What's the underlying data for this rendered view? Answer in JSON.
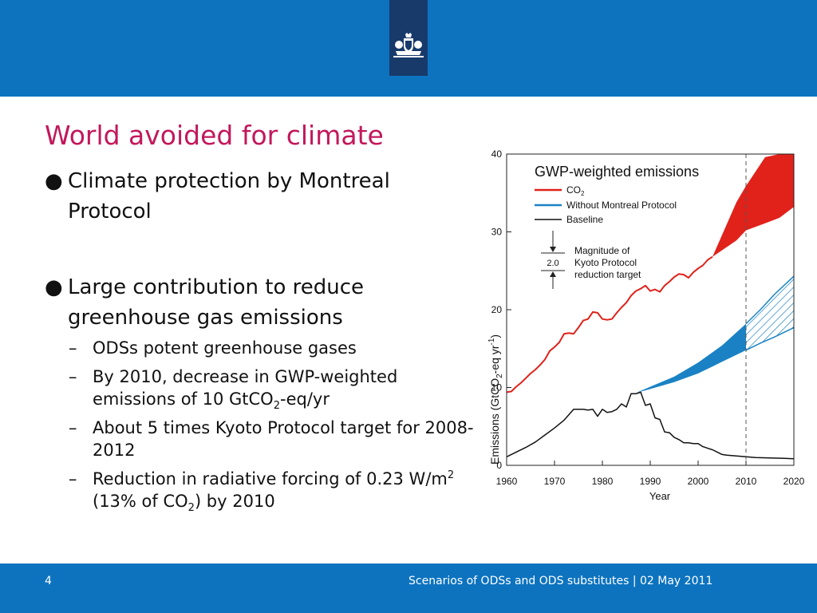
{
  "header": {
    "logo_icon": "royal-coat-of-arms-icon",
    "brand_color": "#0d73bf",
    "logo_bg": "#173a6a"
  },
  "slide": {
    "title": "World avoided for climate",
    "bullet_char": "●",
    "dash_char": "–",
    "bullets": [
      {
        "text": "Climate protection by Montreal Protocol"
      },
      {
        "text": "Large contribution to reduce greenhouse gas emissions"
      }
    ],
    "subbullets": {
      "s1": "ODSs potent greenhouse gases",
      "s2_a": "By 2010, decrease in GWP-weighted emissions of 10 GtCO",
      "s2_sub": "2",
      "s2_b": "-eq/yr",
      "s3": "About 5 times Kyoto Protocol target for 2008-2012",
      "s4_a": "Reduction in radiative forcing of 0.23 W/m",
      "s4_sup": "2",
      "s4_b": " (13% of CO",
      "s4_sub": "2",
      "s4_c": ") by 2010"
    }
  },
  "footer": {
    "page": "4",
    "text": "Scenarios of ODSs and ODS substitutes | 02 May 2011"
  },
  "chart_data": {
    "type": "line",
    "title": "GWP-weighted emissions",
    "ylabel_main": "Emissions (GtCO",
    "ylabel_sub": "2",
    "ylabel_mid": "-eq yr",
    "ylabel_sup": "-1",
    "ylabel_end": ")",
    "xlabel": "Year",
    "xlim": [
      1960,
      2020
    ],
    "ylim": [
      0,
      40
    ],
    "xticks": [
      "1960",
      "1970",
      "1980",
      "1990",
      "2000",
      "2010",
      "2020"
    ],
    "yticks": [
      "0",
      "10",
      "20",
      "30",
      "40"
    ],
    "grid": false,
    "legend_position": "top-left",
    "legend": [
      {
        "label_main": "CO",
        "label_sub": "2",
        "color": "#e0221b"
      },
      {
        "label_main": "Without Montreal Protocol",
        "label_sub": "",
        "color": "#1a82c4"
      },
      {
        "label_main": "Baseline",
        "label_sub": "",
        "color": "#111111"
      }
    ],
    "annotation": {
      "value": "2.0",
      "line1": "Magnitude of",
      "line2": "Kyoto Protocol",
      "line3": "reduction target"
    },
    "reference_line_x": 2010,
    "series": [
      {
        "name": "CO2",
        "color": "#e0221b",
        "x": [
          1960,
          1961,
          1962,
          1963,
          1964,
          1965,
          1966,
          1967,
          1968,
          1969,
          1970,
          1971,
          1972,
          1973,
          1974,
          1975,
          1976,
          1977,
          1978,
          1979,
          1980,
          1981,
          1982,
          1983,
          1984,
          1985,
          1986,
          1987,
          1988,
          1989,
          1990,
          1991,
          1992,
          1993,
          1994,
          1995,
          1996,
          1997,
          1998,
          1999,
          2000,
          2001,
          2002,
          2003
        ],
        "y": [
          9.4,
          9.5,
          10.1,
          10.6,
          11.2,
          11.8,
          12.3,
          12.9,
          13.6,
          14.7,
          15.2,
          15.8,
          16.9,
          17.0,
          16.9,
          17.7,
          18.6,
          18.8,
          19.7,
          19.6,
          18.8,
          18.7,
          18.8,
          19.6,
          20.3,
          20.9,
          21.8,
          22.4,
          22.7,
          23.1,
          22.4,
          22.6,
          22.3,
          23.1,
          23.6,
          24.2,
          24.6,
          24.5,
          24.1,
          24.8,
          25.3,
          25.7,
          26.4,
          26.8
        ]
      },
      {
        "name": "Baseline",
        "color": "#111111",
        "x": [
          1960,
          1962,
          1964,
          1966,
          1968,
          1970,
          1972,
          1974,
          1975,
          1976,
          1977,
          1978,
          1979,
          1980,
          1981,
          1982,
          1983,
          1984,
          1985,
          1986,
          1987,
          1988,
          1989,
          1990,
          1991,
          1992,
          1993,
          1994,
          1995,
          1996,
          1997,
          1998,
          1999,
          2000,
          2001,
          2002,
          2003,
          2004,
          2005,
          2006,
          2008,
          2010,
          2012,
          2015,
          2018,
          2020
        ],
        "y": [
          1.1,
          1.7,
          2.3,
          3.0,
          3.9,
          4.8,
          5.8,
          7.2,
          7.2,
          7.2,
          7.1,
          7.2,
          6.3,
          7.2,
          6.8,
          6.9,
          7.2,
          7.9,
          7.5,
          9.2,
          9.2,
          9.4,
          7.7,
          7.9,
          6.1,
          5.9,
          4.3,
          4.2,
          3.6,
          3.3,
          2.9,
          2.9,
          2.8,
          2.8,
          2.4,
          2.2,
          2.0,
          1.7,
          1.4,
          1.3,
          1.2,
          1.1,
          1.0,
          0.95,
          0.9,
          0.85
        ]
      }
    ],
    "bands": [
      {
        "name": "CO2 projection",
        "color": "#e0221b",
        "x": [
          2003,
          2008,
          2010,
          2014,
          2017,
          2020
        ],
        "lower": [
          26.8,
          28.9,
          30.2,
          31.1,
          31.8,
          33.2
        ],
        "upper": [
          26.8,
          33.8,
          35.9,
          39.6,
          40.0,
          40.0
        ]
      },
      {
        "name": "Without Montreal Protocol (to 2010)",
        "color": "#1a82c4",
        "x": [
          1987,
          1990,
          1995,
          2000,
          2005,
          2010
        ],
        "lower": [
          9.3,
          9.8,
          10.7,
          11.8,
          13.3,
          14.8
        ],
        "upper": [
          9.3,
          10.1,
          11.4,
          13.2,
          15.4,
          18.2
        ]
      },
      {
        "name": "Without Montreal Protocol (2010-2020, hatched)",
        "color": "#1a82c4",
        "x": [
          2010,
          2013,
          2016,
          2020
        ],
        "lower": [
          14.8,
          15.7,
          16.5,
          17.7
        ],
        "upper": [
          18.2,
          20.0,
          22.0,
          24.3
        ]
      }
    ]
  }
}
